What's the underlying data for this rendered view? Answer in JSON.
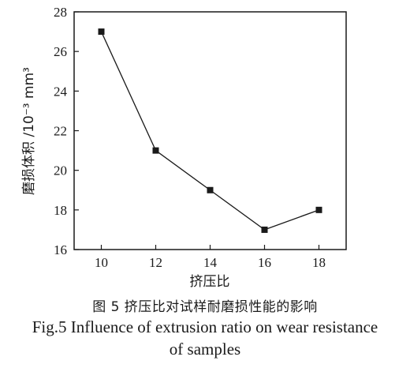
{
  "chart_data": {
    "type": "line",
    "x": [
      10,
      12,
      14,
      16,
      18
    ],
    "series": [
      {
        "values": [
          27,
          21,
          19,
          17,
          18
        ]
      }
    ],
    "xlabel": "挤压比",
    "ylabel": "磨损体积 /10⁻³ mm³",
    "xlim": [
      9,
      19
    ],
    "ylim": [
      16,
      28
    ],
    "xticks": [
      10,
      12,
      14,
      16,
      18
    ],
    "yticks": [
      16,
      18,
      20,
      22,
      24,
      26,
      28
    ],
    "grid": false,
    "marker": "square",
    "line_color": "#1a1a1a"
  },
  "caption": {
    "cn": "图 5  挤压比对试样耐磨损性能的影响",
    "en_line1": "Fig.5  Influence of extrusion ratio on wear resistance",
    "en_line2": "of samples"
  }
}
